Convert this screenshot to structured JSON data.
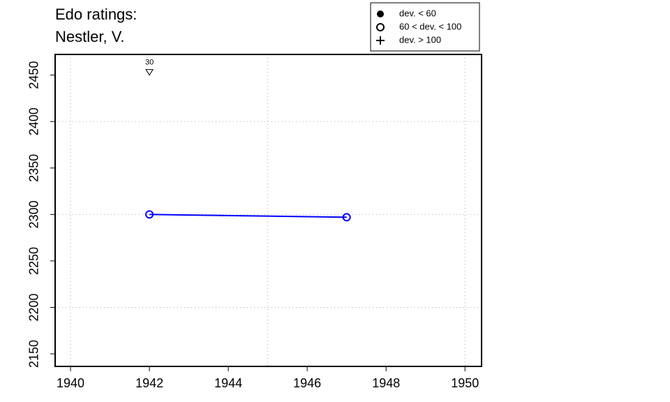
{
  "chart_data": {
    "type": "line",
    "title": [
      "Edo ratings:",
      "Nestler, V."
    ],
    "x": [
      1942,
      1947
    ],
    "series": [
      {
        "color": "#0000ff",
        "marker": "open-circle",
        "values": [
          2300,
          2297
        ]
      }
    ],
    "annotations": [
      {
        "x": 1942,
        "y": 2453,
        "value": 30,
        "marker": "down-triangle"
      }
    ],
    "legend": [
      {
        "label": "dev. < 60",
        "marker": "filled-circle"
      },
      {
        "label": "60 < dev. < 100",
        "marker": "open-circle"
      },
      {
        "label": "dev. > 100",
        "marker": "plus"
      }
    ],
    "legend_position": "top-right",
    "xlim": [
      1939.61,
      1950.42
    ],
    "ylim": [
      2136.5,
      2472.2
    ],
    "xticks": [
      1940,
      1942,
      1944,
      1946,
      1948,
      1950
    ],
    "yticks": [
      2150,
      2200,
      2250,
      2300,
      2350,
      2400,
      2450
    ],
    "xgrid": [
      1940,
      1945,
      1950
    ],
    "ygrid": [
      2200,
      2300,
      2400
    ]
  }
}
